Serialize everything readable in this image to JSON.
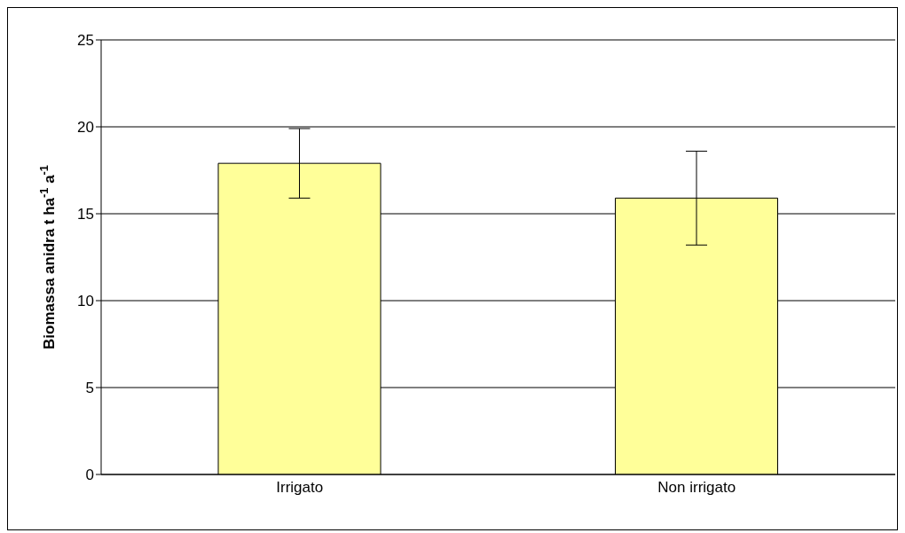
{
  "chart_data": {
    "type": "bar",
    "ylabel": "Biomassa anidra t ha$^{-1}$ a$^{-1}$",
    "categories": [
      "Irrigato",
      "Non irrigato"
    ],
    "values": [
      17.9,
      15.9
    ],
    "errors": [
      2.0,
      2.7
    ],
    "color": "#ffff99",
    "ylim": [
      0,
      25
    ],
    "yticks": [
      0,
      5,
      10,
      15,
      20,
      25
    ],
    "grid": "y",
    "legend": false
  }
}
